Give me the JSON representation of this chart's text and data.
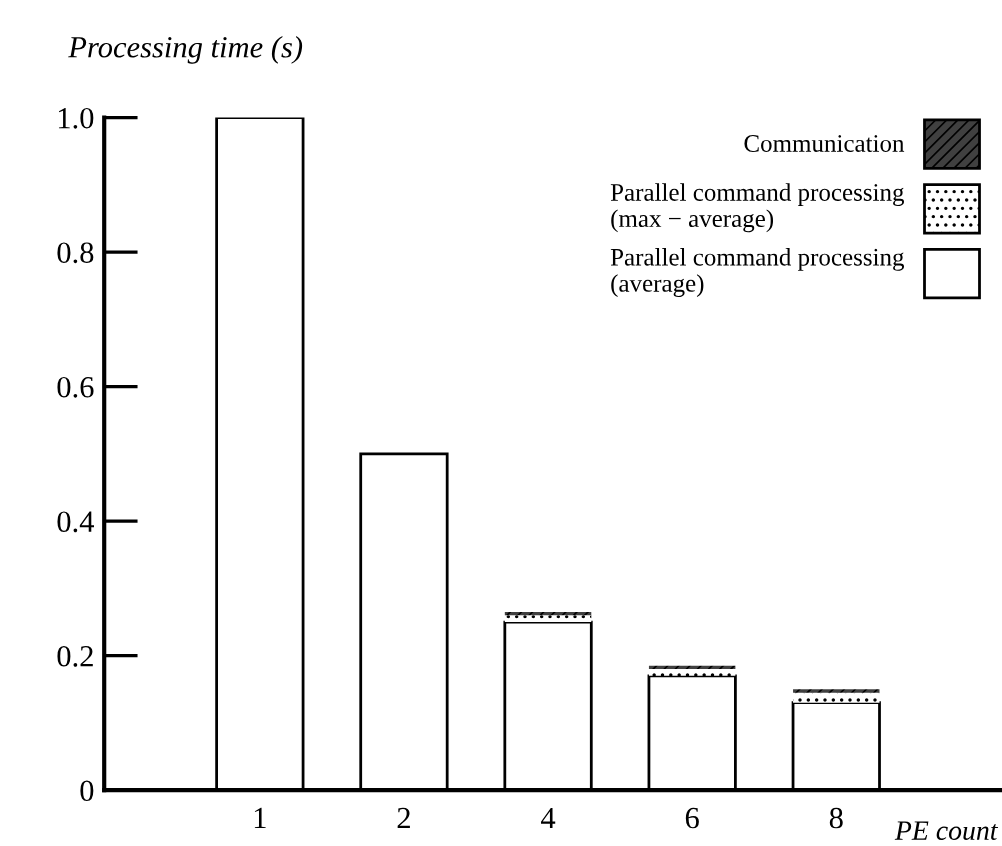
{
  "chart_data": {
    "type": "bar",
    "stacked": true,
    "ylabel": "Processing time (s)",
    "xlabel": "PE count",
    "categories": [
      "1",
      "2",
      "4",
      "6",
      "8"
    ],
    "series": [
      {
        "name": "Parallel command processing\n(average)",
        "color": "#ffffff",
        "values": [
          1.0,
          0.5,
          0.25,
          0.17,
          0.13
        ]
      },
      {
        "name": "Parallel command processing\n(max − average)",
        "color": "#ffffff",
        "values": [
          null,
          null,
          0.01,
          0.01,
          0.015
        ]
      },
      {
        "name": "Communication",
        "color": "#404040",
        "values": [
          null,
          null,
          0.005,
          0.005,
          0.005
        ]
      }
    ],
    "ylim": [
      0,
      1.0
    ],
    "yticks": [
      0,
      0.2,
      0.4,
      0.6,
      0.8,
      {
        "value": 1,
        "label": "1.0"
      }
    ],
    "legend": "top right",
    "grid": false
  }
}
